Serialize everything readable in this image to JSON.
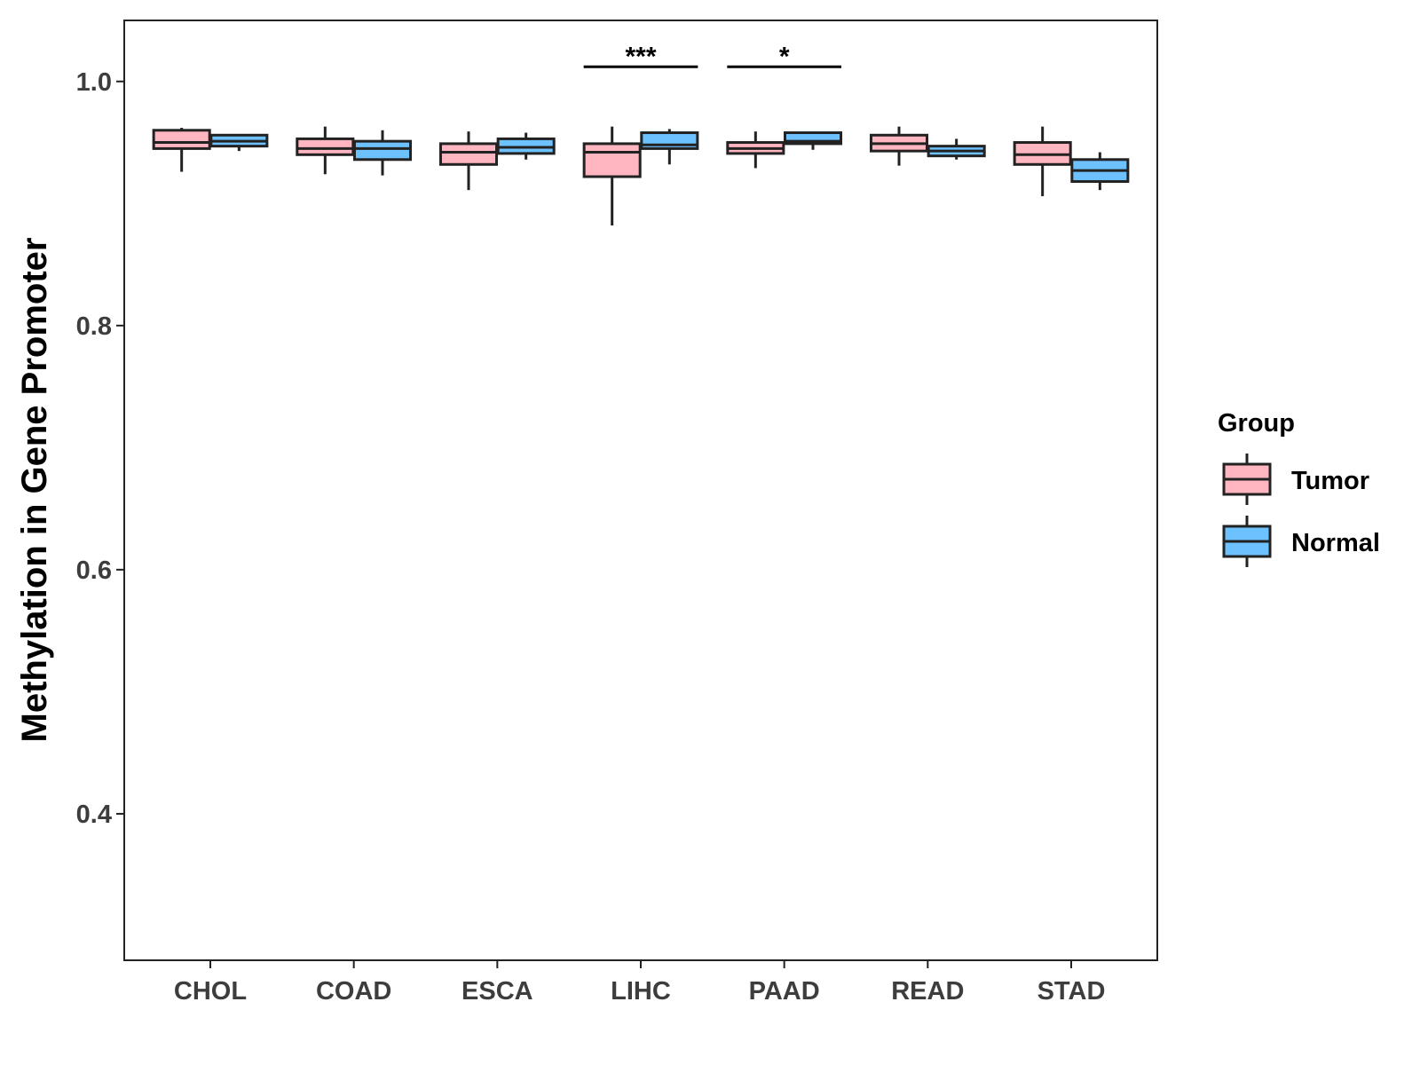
{
  "chart_data": {
    "type": "boxplot",
    "ylabel": "Methylation in Gene Promoter",
    "xlabel": "",
    "ylim": [
      0.28,
      1.05
    ],
    "yticks": [
      0.4,
      0.6,
      0.8,
      1.0
    ],
    "ytick_labels": [
      "0.4",
      "0.6",
      "0.8",
      "1.0"
    ],
    "categories": [
      "CHOL",
      "COAD",
      "ESCA",
      "LIHC",
      "PAAD",
      "READ",
      "STAD"
    ],
    "legend": {
      "title": "Group",
      "position": "right",
      "entries": [
        {
          "name": "Tumor",
          "color": "#ffb6c1"
        },
        {
          "name": "Normal",
          "color": "#6ec1ff"
        }
      ]
    },
    "series": [
      {
        "name": "Tumor",
        "color": "#ffb6c1",
        "boxes": [
          {
            "category": "CHOL",
            "min": 0.926,
            "q1": 0.945,
            "median": 0.95,
            "q3": 0.96,
            "max": 0.962
          },
          {
            "category": "COAD",
            "min": 0.924,
            "q1": 0.94,
            "median": 0.945,
            "q3": 0.953,
            "max": 0.963
          },
          {
            "category": "ESCA",
            "min": 0.911,
            "q1": 0.932,
            "median": 0.942,
            "q3": 0.949,
            "max": 0.959
          },
          {
            "category": "LIHC",
            "min": 0.882,
            "q1": 0.922,
            "median": 0.942,
            "q3": 0.949,
            "max": 0.963
          },
          {
            "category": "PAAD",
            "min": 0.929,
            "q1": 0.941,
            "median": 0.945,
            "q3": 0.95,
            "max": 0.959
          },
          {
            "category": "READ",
            "min": 0.931,
            "q1": 0.943,
            "median": 0.949,
            "q3": 0.956,
            "max": 0.963
          },
          {
            "category": "STAD",
            "min": 0.906,
            "q1": 0.932,
            "median": 0.94,
            "q3": 0.95,
            "max": 0.963
          }
        ]
      },
      {
        "name": "Normal",
        "color": "#6ec1ff",
        "boxes": [
          {
            "category": "CHOL",
            "min": 0.943,
            "q1": 0.947,
            "median": 0.951,
            "q3": 0.956,
            "max": 0.956
          },
          {
            "category": "COAD",
            "min": 0.923,
            "q1": 0.936,
            "median": 0.945,
            "q3": 0.951,
            "max": 0.96
          },
          {
            "category": "ESCA",
            "min": 0.936,
            "q1": 0.941,
            "median": 0.946,
            "q3": 0.953,
            "max": 0.958
          },
          {
            "category": "LIHC",
            "min": 0.932,
            "q1": 0.945,
            "median": 0.948,
            "q3": 0.958,
            "max": 0.961
          },
          {
            "category": "PAAD",
            "min": 0.944,
            "q1": 0.949,
            "median": 0.951,
            "q3": 0.958,
            "max": 0.959
          },
          {
            "category": "READ",
            "min": 0.936,
            "q1": 0.939,
            "median": 0.943,
            "q3": 0.947,
            "max": 0.953
          },
          {
            "category": "STAD",
            "min": 0.911,
            "q1": 0.918,
            "median": 0.927,
            "q3": 0.936,
            "max": 0.942
          }
        ]
      }
    ],
    "significance": [
      {
        "category": "LIHC",
        "label": "***",
        "y": 1.012
      },
      {
        "category": "PAAD",
        "label": "*",
        "y": 1.012
      }
    ],
    "grid": false
  }
}
